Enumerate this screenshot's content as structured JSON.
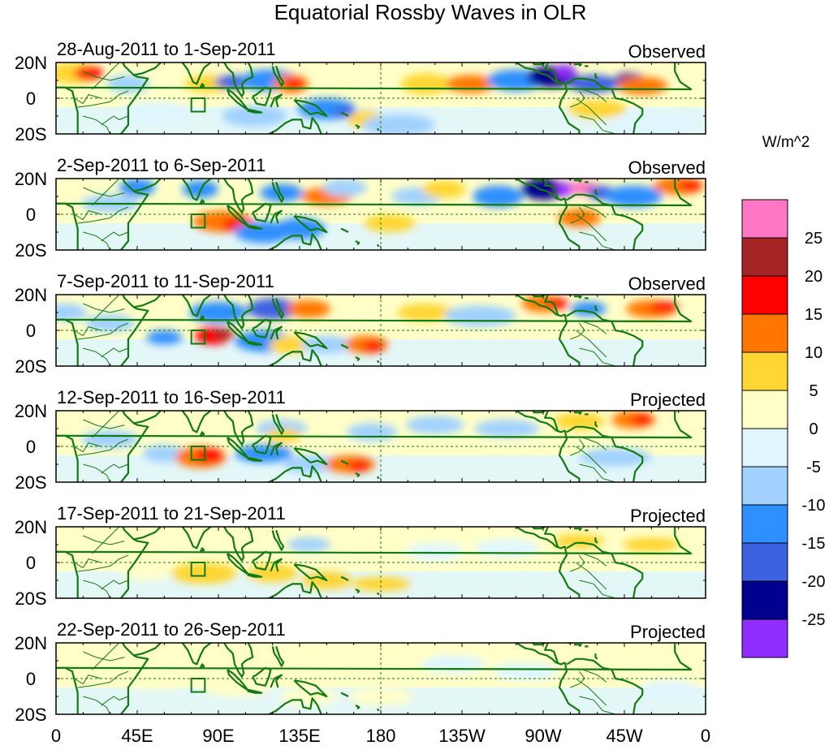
{
  "title": "Equatorial Rossby Waves in OLR",
  "units_label": "W/m^2",
  "y_tick_labels": [
    "20N",
    "0",
    "20S"
  ],
  "x_tick_labels": [
    "0",
    "45E",
    "90E",
    "135E",
    "180",
    "135W",
    "90W",
    "45W",
    "0"
  ],
  "panels": [
    {
      "period": "28-Aug-2011 to 1-Sep-2011",
      "status": "Observed"
    },
    {
      "period": "2-Sep-2011 to 6-Sep-2011",
      "status": "Observed"
    },
    {
      "period": "7-Sep-2011 to 11-Sep-2011",
      "status": "Observed"
    },
    {
      "period": "12-Sep-2011 to 16-Sep-2011",
      "status": "Projected"
    },
    {
      "period": "17-Sep-2011 to 21-Sep-2011",
      "status": "Projected"
    },
    {
      "period": "22-Sep-2011 to 26-Sep-2011",
      "status": "Projected"
    }
  ],
  "colorbar": {
    "labels": [
      "25",
      "20",
      "15",
      "10",
      "5",
      "0",
      "-5",
      "-10",
      "-15",
      "-20",
      "-25"
    ],
    "colors": [
      "#ff77c4",
      "#a52525",
      "#ff0000",
      "#ff7700",
      "#ffd633",
      "#ffffc8",
      "#dff6ff",
      "#a0d1ff",
      "#2e8fff",
      "#3d62e0",
      "#00008e",
      "#8f2eff"
    ]
  },
  "anomaly_colors": {
    "p5": "#ffd633",
    "p10": "#ff7700",
    "p15": "#ff0000",
    "p20": "#a52525",
    "p25": "#ff77c4",
    "n5": "#a0d1ff",
    "n10": "#2e8fff",
    "n15": "#3d62e0",
    "n20": "#00008e",
    "n25": "#8f2eff",
    "light_pos": "#ffffc8",
    "light_neg": "#dff6ff"
  },
  "map_colors": {
    "coast": "#117a11",
    "grid": "#117a11",
    "box": "#117a11"
  }
}
